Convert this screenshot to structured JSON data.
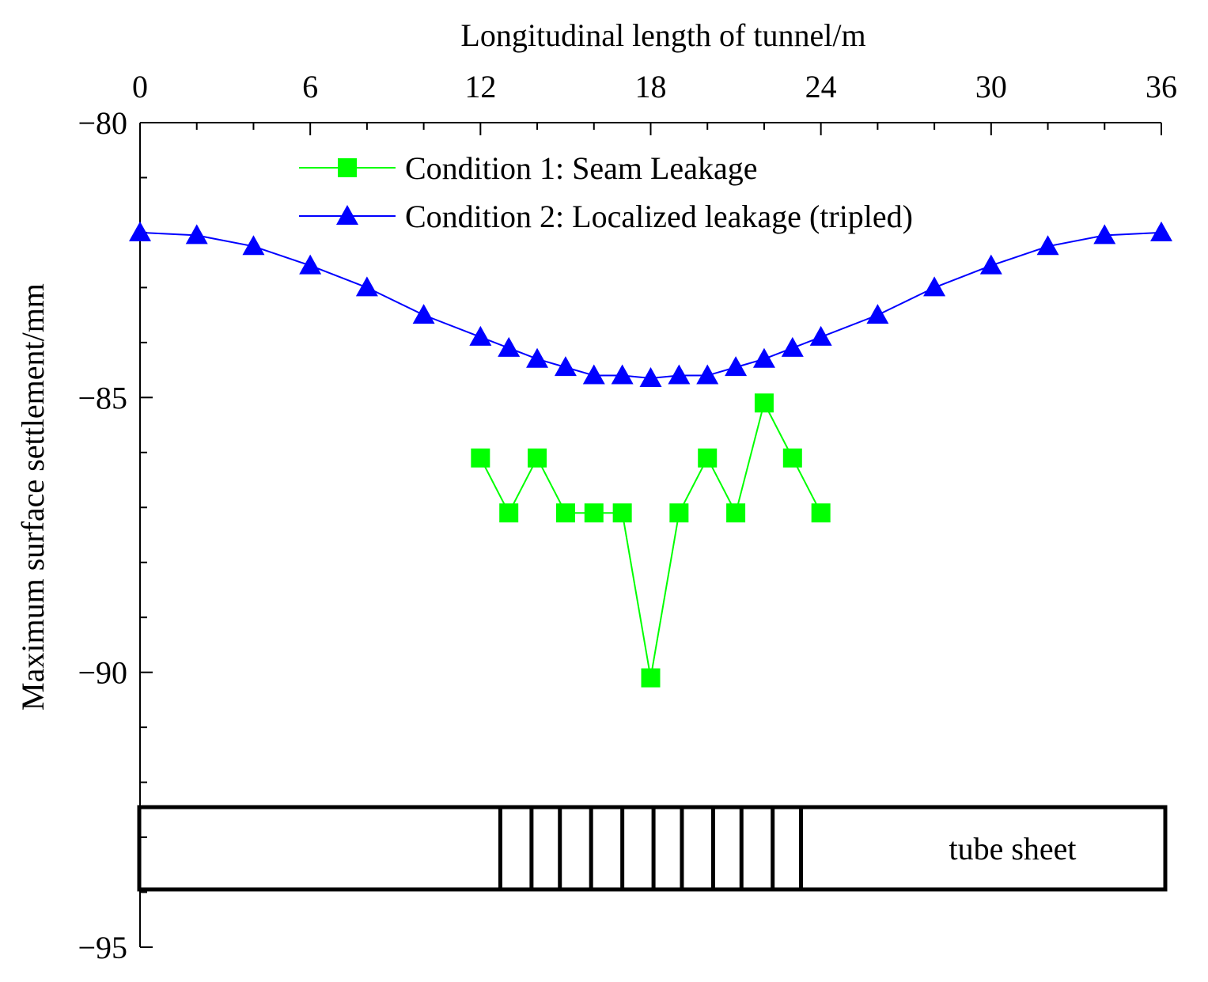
{
  "chart_data": {
    "type": "line",
    "title": "",
    "xlabel": "Longitudinal length of tunnel/m",
    "ylabel": "Maximum surface settlement/mm",
    "xlim": [
      0,
      36
    ],
    "ylim": [
      -95,
      -80
    ],
    "x_ticks": [
      0,
      6,
      12,
      18,
      24,
      30,
      36
    ],
    "y_ticks": [
      -80,
      -85,
      -90,
      -95
    ],
    "x_tick_labels": [
      "0",
      "6",
      "12",
      "18",
      "24",
      "30",
      "36"
    ],
    "y_tick_labels": [
      "−80",
      "−85",
      "−90",
      "−95"
    ],
    "legend_position": "top",
    "series": [
      {
        "name": "Condition 1: Seam Leakage",
        "color": "#00ff00",
        "marker": "square",
        "x": [
          12,
          13,
          14,
          15,
          16,
          17,
          18,
          19,
          20,
          21,
          22,
          23,
          24
        ],
        "y": [
          -86.1,
          -87.1,
          -86.1,
          -87.1,
          -87.1,
          -87.1,
          -90.1,
          -87.1,
          -86.1,
          -87.1,
          -85.1,
          -86.1,
          -87.1
        ]
      },
      {
        "name": "Condition 2: Localized leakage (tripled)",
        "color": "#0000ff",
        "marker": "triangle",
        "x": [
          0,
          2,
          4,
          6,
          8,
          10,
          12,
          13,
          14,
          15,
          16,
          17,
          18,
          19,
          20,
          21,
          22,
          23,
          24,
          26,
          28,
          30,
          32,
          34,
          36
        ],
        "y": [
          -82.0,
          -82.05,
          -82.25,
          -82.6,
          -83.0,
          -83.5,
          -83.9,
          -84.1,
          -84.3,
          -84.45,
          -84.6,
          -84.6,
          -84.65,
          -84.6,
          -84.6,
          -84.45,
          -84.3,
          -84.1,
          -83.9,
          -83.5,
          -83.0,
          -82.6,
          -82.25,
          -82.05,
          -82.0
        ]
      }
    ],
    "annotation": {
      "label": "tube sheet",
      "segment_lines_x": [
        12.7,
        13.8,
        14.8,
        15.9,
        17.0,
        18.1,
        19.1,
        20.2,
        21.2,
        22.3,
        23.3
      ]
    }
  }
}
